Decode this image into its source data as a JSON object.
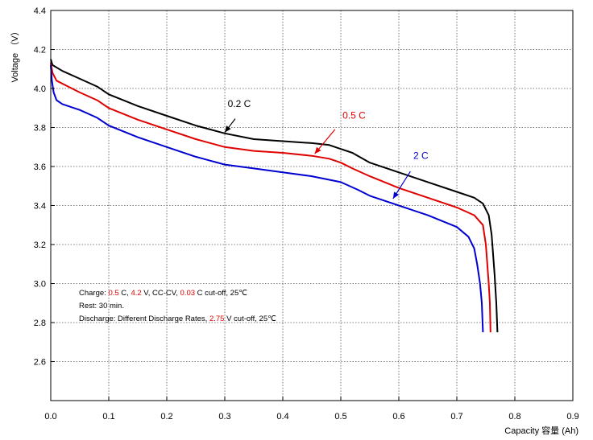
{
  "chart_data": {
    "type": "line",
    "xlabel": "Capacity 容量 (Ah)",
    "ylabel": "Voltage （V）",
    "xlim": [
      0.0,
      0.9
    ],
    "ylim": [
      2.4,
      4.4
    ],
    "x_ticks": [
      "0.0",
      "0.1",
      "0.2",
      "0.3",
      "0.4",
      "0.5",
      "0.6",
      "0.7",
      "0.8",
      "0.9"
    ],
    "y_ticks": [
      "2.6",
      "2.8",
      "3.0",
      "3.2",
      "3.4",
      "3.6",
      "3.8",
      "4.0",
      "4.2",
      "4.4"
    ],
    "grid": true,
    "series": [
      {
        "name": "0.2 C",
        "color": "#000000",
        "points": [
          [
            0.0,
            4.15
          ],
          [
            0.003,
            4.12
          ],
          [
            0.02,
            4.09
          ],
          [
            0.05,
            4.05
          ],
          [
            0.08,
            4.01
          ],
          [
            0.1,
            3.97
          ],
          [
            0.15,
            3.91
          ],
          [
            0.2,
            3.86
          ],
          [
            0.25,
            3.81
          ],
          [
            0.3,
            3.77
          ],
          [
            0.35,
            3.74
          ],
          [
            0.4,
            3.73
          ],
          [
            0.45,
            3.72
          ],
          [
            0.48,
            3.71
          ],
          [
            0.5,
            3.69
          ],
          [
            0.52,
            3.67
          ],
          [
            0.55,
            3.62
          ],
          [
            0.6,
            3.57
          ],
          [
            0.65,
            3.52
          ],
          [
            0.7,
            3.47
          ],
          [
            0.73,
            3.44
          ],
          [
            0.745,
            3.41
          ],
          [
            0.755,
            3.35
          ],
          [
            0.76,
            3.25
          ],
          [
            0.765,
            3.05
          ],
          [
            0.768,
            2.9
          ],
          [
            0.77,
            2.75
          ]
        ]
      },
      {
        "name": "0.5 C",
        "color": "#e00000",
        "points": [
          [
            0.0,
            4.13
          ],
          [
            0.003,
            4.08
          ],
          [
            0.01,
            4.04
          ],
          [
            0.03,
            4.01
          ],
          [
            0.05,
            3.98
          ],
          [
            0.08,
            3.94
          ],
          [
            0.1,
            3.9
          ],
          [
            0.15,
            3.84
          ],
          [
            0.2,
            3.79
          ],
          [
            0.25,
            3.74
          ],
          [
            0.3,
            3.7
          ],
          [
            0.35,
            3.68
          ],
          [
            0.4,
            3.67
          ],
          [
            0.45,
            3.655
          ],
          [
            0.48,
            3.64
          ],
          [
            0.5,
            3.62
          ],
          [
            0.52,
            3.59
          ],
          [
            0.55,
            3.55
          ],
          [
            0.6,
            3.49
          ],
          [
            0.65,
            3.44
          ],
          [
            0.7,
            3.39
          ],
          [
            0.73,
            3.35
          ],
          [
            0.745,
            3.3
          ],
          [
            0.75,
            3.2
          ],
          [
            0.755,
            3.0
          ],
          [
            0.757,
            2.9
          ],
          [
            0.758,
            2.75
          ]
        ]
      },
      {
        "name": "2 C",
        "color": "#0000d0",
        "points": [
          [
            0.0,
            4.12
          ],
          [
            0.002,
            4.04
          ],
          [
            0.005,
            3.98
          ],
          [
            0.01,
            3.94
          ],
          [
            0.02,
            3.92
          ],
          [
            0.05,
            3.89
          ],
          [
            0.08,
            3.85
          ],
          [
            0.1,
            3.81
          ],
          [
            0.15,
            3.75
          ],
          [
            0.2,
            3.7
          ],
          [
            0.25,
            3.65
          ],
          [
            0.3,
            3.61
          ],
          [
            0.35,
            3.59
          ],
          [
            0.4,
            3.57
          ],
          [
            0.45,
            3.55
          ],
          [
            0.5,
            3.52
          ],
          [
            0.53,
            3.48
          ],
          [
            0.55,
            3.45
          ],
          [
            0.6,
            3.4
          ],
          [
            0.65,
            3.35
          ],
          [
            0.7,
            3.29
          ],
          [
            0.72,
            3.24
          ],
          [
            0.73,
            3.18
          ],
          [
            0.735,
            3.1
          ],
          [
            0.74,
            3.0
          ],
          [
            0.743,
            2.9
          ],
          [
            0.745,
            2.75
          ]
        ]
      }
    ],
    "annotations": [
      {
        "series": 0,
        "text": "0.2 C",
        "color": "#000000",
        "at": [
          0.305,
          3.905
        ],
        "arrow_from": [
          0.318,
          3.845
        ],
        "arrow_to": [
          0.3,
          3.775
        ]
      },
      {
        "series": 1,
        "text": "0.5 C",
        "color": "#e00000",
        "at": [
          0.503,
          3.845
        ],
        "arrow_from": [
          0.49,
          3.79
        ],
        "arrow_to": [
          0.455,
          3.665
        ]
      },
      {
        "series": 2,
        "text": "2 C",
        "color": "#0000d0",
        "at": [
          0.625,
          3.64
        ],
        "arrow_from": [
          0.62,
          3.575
        ],
        "arrow_to": [
          0.59,
          3.435
        ]
      }
    ],
    "notes": [
      [
        {
          "text": "Charge: ",
          "color": "#000000"
        },
        {
          "text": "0.5",
          "color": "#e00000"
        },
        {
          "text": " C, ",
          "color": "#000000"
        },
        {
          "text": "4.2",
          "color": "#e00000"
        },
        {
          "text": " V, CC-CV, ",
          "color": "#000000"
        },
        {
          "text": "0.03",
          "color": "#e00000"
        },
        {
          "text": " C cut-off, 25℃",
          "color": "#000000"
        }
      ],
      [
        {
          "text": "Rest: 30 min.",
          "color": "#000000"
        }
      ],
      [
        {
          "text": "Discharge: Different Discharge Rates, ",
          "color": "#000000"
        },
        {
          "text": "2.75",
          "color": "#e00000"
        },
        {
          "text": " V cut-off, 25℃",
          "color": "#000000"
        }
      ]
    ]
  }
}
